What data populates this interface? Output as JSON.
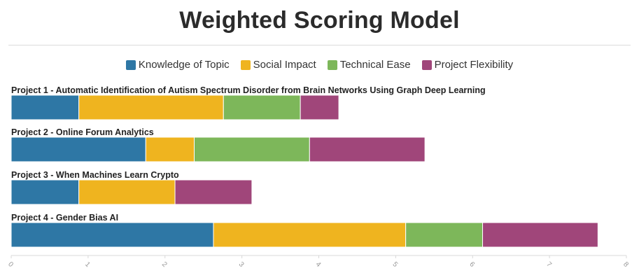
{
  "page": {
    "title": "Weighted Scoring Model"
  },
  "chart_data": {
    "type": "bar",
    "orientation": "horizontal",
    "stacked": true,
    "title": "Weighted Scoring Model",
    "categories": [
      "Project 1 - Automatic Identification of Autism Spectrum Disorder from Brain Networks Using Graph Deep Learning",
      "Project 2 - Online Forum Analytics",
      "Project 3 - When Machines Learn Crypto",
      "Project 4 - Gender Bias AI"
    ],
    "series": [
      {
        "name": "Knowledge of Topic",
        "color": "#2e77a5",
        "values": [
          0.88,
          1.75,
          0.88,
          2.63
        ]
      },
      {
        "name": "Social Impact",
        "color": "#efb41f",
        "values": [
          1.88,
          0.63,
          1.25,
          2.5
        ]
      },
      {
        "name": "Technical Ease",
        "color": "#7db75a",
        "values": [
          1.0,
          1.5,
          0,
          1.0
        ]
      },
      {
        "name": "Project Flexibility",
        "color": "#a0467a",
        "values": [
          0.5,
          1.5,
          1.0,
          1.5
        ]
      }
    ],
    "xlim": [
      0,
      8
    ],
    "xticks": [
      "0",
      "1",
      "2",
      "3",
      "4",
      "5",
      "6",
      "7",
      "8"
    ],
    "legend_position": "top-center",
    "grid": false
  }
}
